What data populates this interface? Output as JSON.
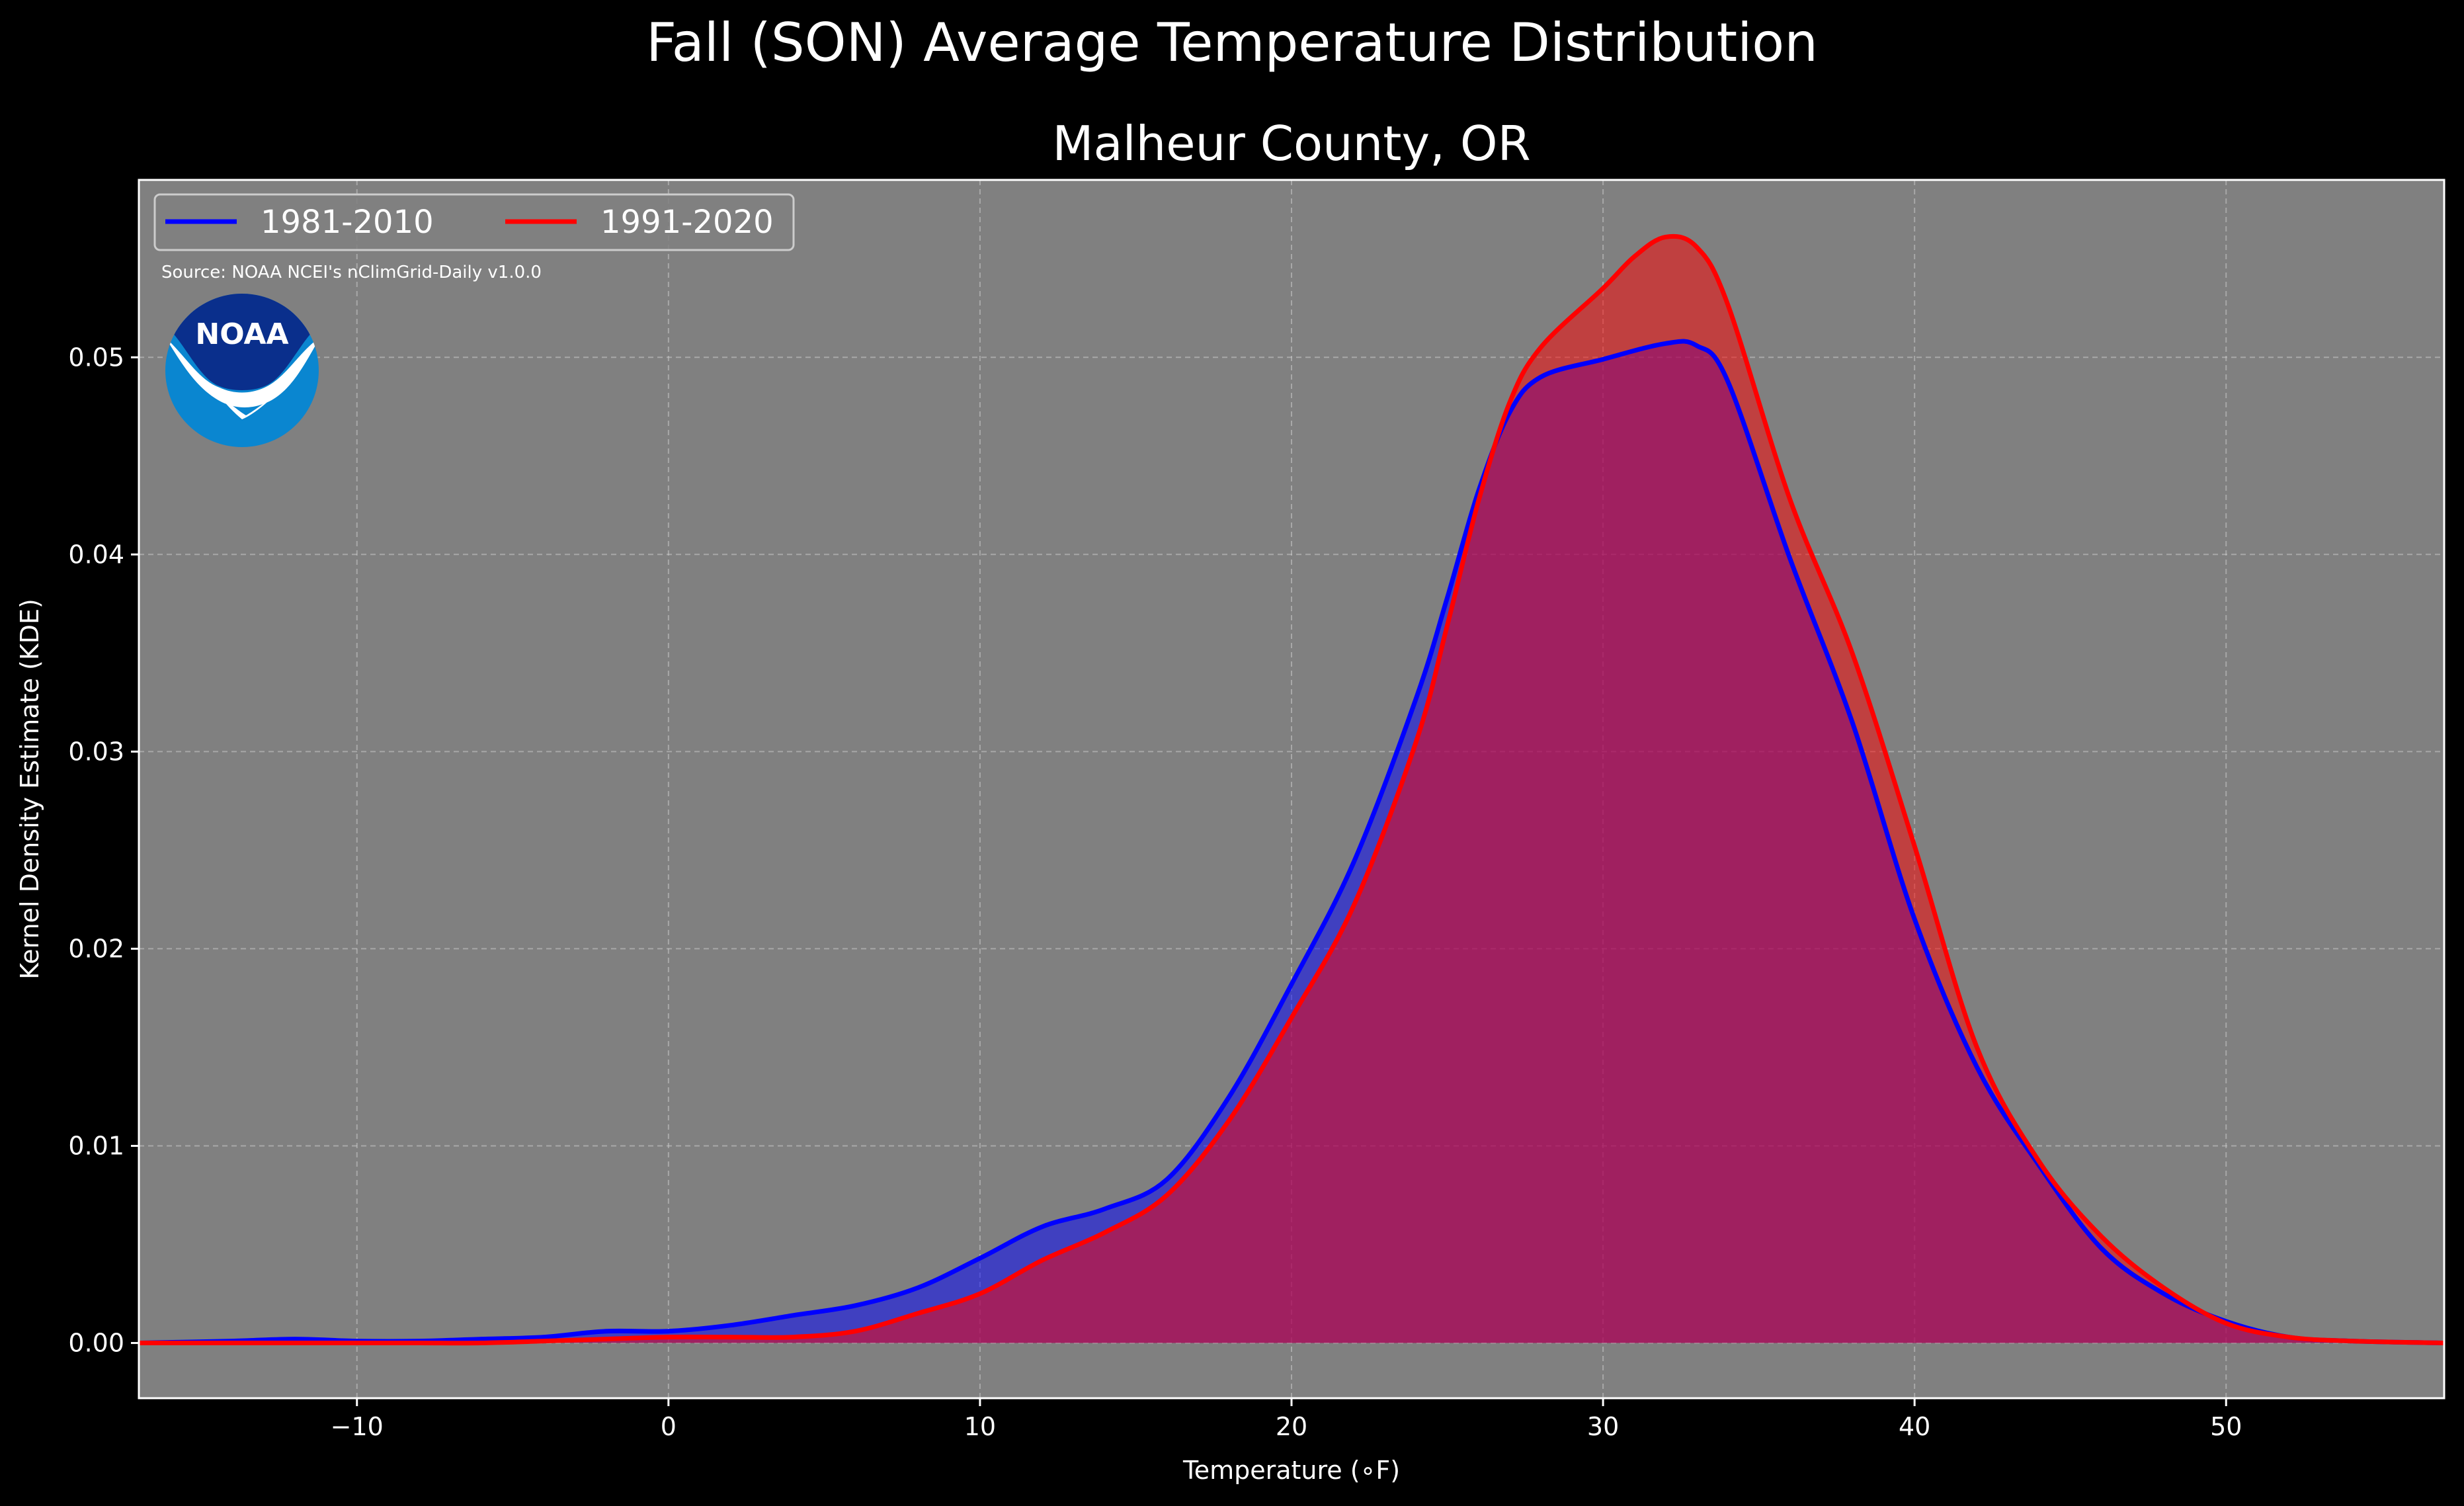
{
  "chart_data": {
    "type": "area",
    "suptitle": "Fall (SON) Average Temperature Distribution",
    "title": "Malheur County, OR",
    "xlabel": "Temperature (∘F)",
    "ylabel": "Kernel Density Estimate (KDE)",
    "source": "Source: NOAA NCEI's nClimGrid-Daily v1.0.0",
    "logo_text": "NOAA",
    "xlim": [
      -17,
      57
    ],
    "ylim": [
      -0.0028,
      0.059
    ],
    "x_ticks": [
      -10,
      0,
      10,
      20,
      30,
      40,
      50
    ],
    "x_tick_labels": [
      "−10",
      "0",
      "10",
      "20",
      "30",
      "40",
      "50"
    ],
    "y_ticks": [
      0.0,
      0.01,
      0.02,
      0.03,
      0.04,
      0.05
    ],
    "y_tick_labels": [
      "0.00",
      "0.01",
      "0.02",
      "0.03",
      "0.04",
      "0.05"
    ],
    "grid": true,
    "legend_placement": "top-left",
    "colors": {
      "background": "#000000",
      "plot_bg": "#808080",
      "series_1": "#0000ff",
      "series_2": "#ff0000",
      "logo_dark": "#0a2f8c",
      "logo_light": "#0a86d0"
    },
    "series": [
      {
        "name": "1981-2010",
        "color": "#0000ff",
        "x": [
          -17,
          -14,
          -12,
          -10,
          -8,
          -6,
          -4,
          -2,
          0,
          2,
          4,
          6,
          8,
          10,
          12,
          14,
          16,
          18,
          20,
          22,
          24,
          25,
          26,
          27,
          28,
          30,
          32,
          33,
          34,
          36,
          38,
          40,
          42,
          44,
          46,
          48,
          50,
          52,
          54,
          57
        ],
        "y": [
          0.0,
          0.0001,
          0.0002,
          0.0001,
          0.0001,
          0.0002,
          0.0003,
          0.0006,
          0.0006,
          0.0009,
          0.0014,
          0.0019,
          0.0028,
          0.0043,
          0.0059,
          0.0068,
          0.0083,
          0.0125,
          0.0182,
          0.0244,
          0.0327,
          0.0378,
          0.0432,
          0.0472,
          0.049,
          0.0499,
          0.0507,
          0.0506,
          0.0488,
          0.0398,
          0.0315,
          0.0215,
          0.014,
          0.009,
          0.0048,
          0.0025,
          0.0011,
          0.0003,
          0.0001,
          0.0
        ]
      },
      {
        "name": "1991-2020",
        "color": "#ff0000",
        "x": [
          -17,
          -14,
          -12,
          -10,
          -8,
          -6,
          -4,
          -2,
          0,
          2,
          4,
          6,
          8,
          10,
          12,
          14,
          16,
          18,
          20,
          22,
          24,
          25,
          26,
          27,
          28,
          30,
          31,
          32,
          33,
          34,
          36,
          38,
          40,
          42,
          44,
          46,
          48,
          50,
          52,
          54,
          57
        ],
        "y": [
          0.0,
          0.0,
          0.0,
          0.0,
          0.0,
          0.0,
          0.0001,
          0.0002,
          0.0003,
          0.0003,
          0.0003,
          0.0006,
          0.0015,
          0.0025,
          0.0042,
          0.0056,
          0.0075,
          0.0113,
          0.0165,
          0.0222,
          0.0305,
          0.0364,
          0.0427,
          0.0477,
          0.0505,
          0.0535,
          0.0551,
          0.0561,
          0.0556,
          0.0527,
          0.0428,
          0.035,
          0.0252,
          0.015,
          0.0092,
          0.0054,
          0.0028,
          0.001,
          0.0003,
          0.0001,
          0.0
        ]
      }
    ]
  }
}
